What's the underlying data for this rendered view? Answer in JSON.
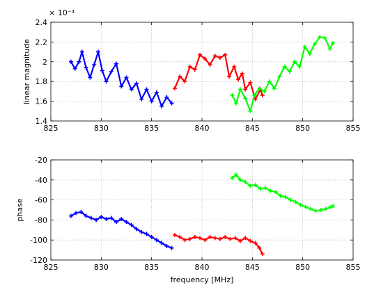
{
  "chart_data": [
    {
      "type": "scatter",
      "title": "",
      "xlabel": "",
      "ylabel": "linear magnitude",
      "scale_label": "× 10⁻⁴",
      "xlim": [
        825,
        855
      ],
      "ylim": [
        1.4,
        2.4
      ],
      "xticks": [
        825,
        830,
        835,
        840,
        845,
        850,
        855
      ],
      "yticks": [
        1.4,
        1.6,
        1.8,
        2,
        2.2,
        2.4
      ],
      "xtick_labels": [
        "825",
        "830",
        "835",
        "840",
        "845",
        "850",
        "855"
      ],
      "ytick_labels": [
        "1.4",
        "1.6",
        "1.8",
        "2",
        "2.2",
        "2.4"
      ],
      "grid": true,
      "series": [
        {
          "color": "#0000ff",
          "points": [
            [
              827.0,
              2.0
            ],
            [
              827.4,
              1.93
            ],
            [
              827.8,
              2.0
            ],
            [
              828.1,
              2.1
            ],
            [
              828.5,
              1.94
            ],
            [
              828.9,
              1.84
            ],
            [
              829.3,
              1.97
            ],
            [
              829.7,
              2.1
            ],
            [
              830.1,
              1.91
            ],
            [
              830.5,
              1.8
            ],
            [
              831.0,
              1.9
            ],
            [
              831.5,
              1.98
            ],
            [
              832.0,
              1.75
            ],
            [
              832.5,
              1.84
            ],
            [
              833.0,
              1.72
            ],
            [
              833.5,
              1.78
            ],
            [
              834.0,
              1.62
            ],
            [
              834.5,
              1.72
            ],
            [
              835.0,
              1.6
            ],
            [
              835.5,
              1.69
            ],
            [
              836.0,
              1.55
            ],
            [
              836.5,
              1.64
            ],
            [
              837.0,
              1.58
            ]
          ]
        },
        {
          "color": "#ff0000",
          "points": [
            [
              837.3,
              1.73
            ],
            [
              837.8,
              1.85
            ],
            [
              838.3,
              1.8
            ],
            [
              838.8,
              1.95
            ],
            [
              839.3,
              1.92
            ],
            [
              839.8,
              2.07
            ],
            [
              840.3,
              2.03
            ],
            [
              840.8,
              1.97
            ],
            [
              841.3,
              2.06
            ],
            [
              841.8,
              2.04
            ],
            [
              842.3,
              2.07
            ],
            [
              842.7,
              1.85
            ],
            [
              843.2,
              1.95
            ],
            [
              843.6,
              1.82
            ],
            [
              844.0,
              1.88
            ],
            [
              844.3,
              1.72
            ],
            [
              844.8,
              1.79
            ],
            [
              845.3,
              1.62
            ],
            [
              845.8,
              1.72
            ],
            [
              846.0,
              1.66
            ]
          ]
        },
        {
          "color": "#00ff00",
          "points": [
            [
              843.0,
              1.66
            ],
            [
              843.4,
              1.58
            ],
            [
              843.8,
              1.72
            ],
            [
              844.3,
              1.63
            ],
            [
              844.8,
              1.5
            ],
            [
              845.2,
              1.66
            ],
            [
              845.7,
              1.73
            ],
            [
              846.2,
              1.7
            ],
            [
              846.7,
              1.8
            ],
            [
              847.2,
              1.73
            ],
            [
              847.7,
              1.85
            ],
            [
              848.2,
              1.95
            ],
            [
              848.7,
              1.9
            ],
            [
              849.2,
              2.0
            ],
            [
              849.7,
              1.95
            ],
            [
              850.2,
              2.15
            ],
            [
              850.7,
              2.08
            ],
            [
              851.2,
              2.18
            ],
            [
              851.7,
              2.25
            ],
            [
              852.2,
              2.24
            ],
            [
              852.7,
              2.13
            ],
            [
              853.0,
              2.19
            ]
          ]
        }
      ]
    },
    {
      "type": "scatter",
      "title": "",
      "xlabel": "frequency [MHz]",
      "ylabel": "phase",
      "xlim": [
        825,
        855
      ],
      "ylim": [
        -120,
        -20
      ],
      "xticks": [
        825,
        830,
        835,
        840,
        845,
        850,
        855
      ],
      "yticks": [
        -120,
        -100,
        -80,
        -60,
        -40,
        -20
      ],
      "xtick_labels": [
        "825",
        "830",
        "835",
        "840",
        "845",
        "850",
        "855"
      ],
      "ytick_labels": [
        "-120",
        "-100",
        "-80",
        "-60",
        "-40",
        "-20"
      ],
      "grid": true,
      "series": [
        {
          "color": "#0000ff",
          "points": [
            [
              827.0,
              -76
            ],
            [
              827.5,
              -73
            ],
            [
              828.0,
              -72
            ],
            [
              828.5,
              -76
            ],
            [
              829.0,
              -78
            ],
            [
              829.5,
              -80
            ],
            [
              830.0,
              -77
            ],
            [
              830.5,
              -79
            ],
            [
              831.0,
              -78
            ],
            [
              831.5,
              -82
            ],
            [
              832.0,
              -79
            ],
            [
              832.5,
              -82
            ],
            [
              833.0,
              -85
            ],
            [
              833.5,
              -89
            ],
            [
              834.0,
              -92
            ],
            [
              834.5,
              -94
            ],
            [
              835.0,
              -97
            ],
            [
              835.5,
              -100
            ],
            [
              836.0,
              -103
            ],
            [
              836.5,
              -106
            ],
            [
              837.0,
              -108
            ]
          ]
        },
        {
          "color": "#ff0000",
          "points": [
            [
              837.3,
              -95
            ],
            [
              837.8,
              -97
            ],
            [
              838.3,
              -100
            ],
            [
              838.8,
              -99
            ],
            [
              839.3,
              -97
            ],
            [
              839.8,
              -98
            ],
            [
              840.3,
              -100
            ],
            [
              840.8,
              -97
            ],
            [
              841.3,
              -98
            ],
            [
              841.8,
              -99
            ],
            [
              842.3,
              -97
            ],
            [
              842.8,
              -99
            ],
            [
              843.3,
              -98
            ],
            [
              843.8,
              -101
            ],
            [
              844.3,
              -98
            ],
            [
              844.8,
              -101
            ],
            [
              845.3,
              -103
            ],
            [
              845.7,
              -108
            ],
            [
              846.0,
              -114
            ]
          ]
        },
        {
          "color": "#00ff00",
          "points": [
            [
              843.0,
              -38
            ],
            [
              843.4,
              -35
            ],
            [
              843.8,
              -40
            ],
            [
              844.3,
              -42
            ],
            [
              844.8,
              -46
            ],
            [
              845.3,
              -45
            ],
            [
              845.8,
              -49
            ],
            [
              846.3,
              -48
            ],
            [
              846.8,
              -51
            ],
            [
              847.3,
              -52
            ],
            [
              847.8,
              -56
            ],
            [
              848.3,
              -57
            ],
            [
              848.8,
              -60
            ],
            [
              849.3,
              -62
            ],
            [
              849.8,
              -65
            ],
            [
              850.3,
              -67
            ],
            [
              850.8,
              -69
            ],
            [
              851.3,
              -71
            ],
            [
              851.8,
              -70
            ],
            [
              852.3,
              -69
            ],
            [
              852.8,
              -67
            ],
            [
              853.0,
              -66
            ]
          ]
        }
      ]
    }
  ]
}
